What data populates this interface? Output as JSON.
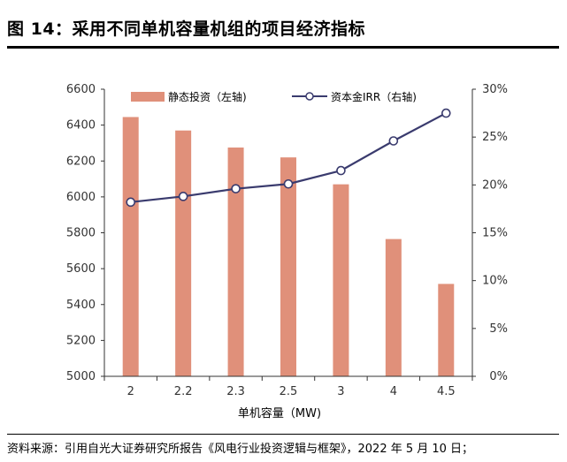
{
  "title": "图 14：采用不同单机容量机组的项目经济指标",
  "source": "资料来源：引用自光大证券研究所报告《风电行业投资逻辑与框架》，2022 年 5 月 10 日；",
  "colors": {
    "bar": "#E0907A",
    "line": "#3A3B6E",
    "axis": "#333333"
  },
  "chart_data": {
    "type": "bar+line",
    "categories": [
      "2",
      "2.2",
      "2.3",
      "2.5",
      "3",
      "4",
      "4.5"
    ],
    "xlabel": "单机容量（MW)",
    "series": [
      {
        "name": "静态投资（左轴)",
        "type": "bar",
        "axis": "left",
        "values": [
          6445,
          6370,
          6275,
          6220,
          6070,
          5765,
          5515
        ]
      },
      {
        "name": "资本金IRR（右轴)",
        "type": "line",
        "axis": "right",
        "values": [
          18.2,
          18.8,
          19.6,
          20.1,
          21.5,
          24.6,
          27.5
        ]
      }
    ],
    "y_left": {
      "range": [
        5000,
        6600
      ],
      "ticks": [
        "5000",
        "5200",
        "5400",
        "5600",
        "5800",
        "6000",
        "6200",
        "6400",
        "6600"
      ]
    },
    "y_right": {
      "range": [
        0,
        30
      ],
      "ticks": [
        "0%",
        "5%",
        "10%",
        "15%",
        "20%",
        "25%",
        "30%"
      ]
    },
    "legend_position": "top-center",
    "grid": false
  }
}
